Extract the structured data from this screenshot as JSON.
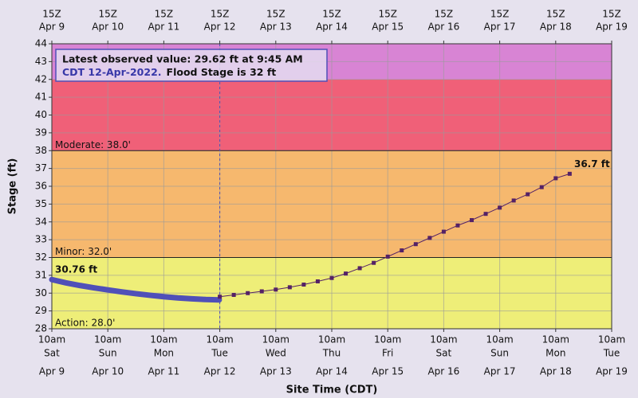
{
  "chart_data": {
    "type": "hydrograph",
    "y_label": "Stage (ft)",
    "x_label": "Site Time (CDT)",
    "ylim": [
      28,
      44
    ],
    "yticks": [
      28,
      29,
      30,
      31,
      32,
      33,
      34,
      35,
      36,
      37,
      38,
      39,
      40,
      41,
      42,
      43,
      44
    ],
    "xlim": [
      "2022-04-09T10:00",
      "2022-04-19T10:00"
    ],
    "xticks": [
      {
        "value": "2022-04-09T10:00",
        "label": "10am",
        "weekday": "Sat",
        "date": "Apr 9",
        "utc": "15Z"
      },
      {
        "value": "2022-04-10T10:00",
        "label": "10am",
        "weekday": "Sun",
        "date": "Apr 10",
        "utc": "15Z"
      },
      {
        "value": "2022-04-11T10:00",
        "label": "10am",
        "weekday": "Mon",
        "date": "Apr 11",
        "utc": "15Z"
      },
      {
        "value": "2022-04-12T10:00",
        "label": "10am",
        "weekday": "Tue",
        "date": "Apr 12",
        "utc": "15Z"
      },
      {
        "value": "2022-04-13T10:00",
        "label": "10am",
        "weekday": "Wed",
        "date": "Apr 13",
        "utc": "15Z"
      },
      {
        "value": "2022-04-14T10:00",
        "label": "10am",
        "weekday": "Thu",
        "date": "Apr 14",
        "utc": "15Z"
      },
      {
        "value": "2022-04-15T10:00",
        "label": "10am",
        "weekday": "Fri",
        "date": "Apr 15",
        "utc": "15Z"
      },
      {
        "value": "2022-04-16T10:00",
        "label": "10am",
        "weekday": "Sat",
        "date": "Apr 16",
        "utc": "15Z"
      },
      {
        "value": "2022-04-17T10:00",
        "label": "10am",
        "weekday": "Sun",
        "date": "Apr 17",
        "utc": "15Z"
      },
      {
        "value": "2022-04-18T10:00",
        "label": "10am",
        "weekday": "Mon",
        "date": "Apr 18",
        "utc": "15Z"
      },
      {
        "value": "2022-04-19T10:00",
        "label": "10am",
        "weekday": "Tue",
        "date": "Apr 19",
        "utc": "15Z"
      }
    ],
    "grid": true,
    "thresholds": [
      {
        "value": 28,
        "label": "Action: 28.0'",
        "color": "#eeee78"
      },
      {
        "value": 32,
        "label": "Minor: 32.0'",
        "color": "#f6b86e"
      },
      {
        "value": 38,
        "label": "Moderate: 38.0'",
        "color": "#f06078"
      },
      {
        "value": 42,
        "color": "#d884d4"
      }
    ],
    "current_time": "2022-04-12T10:00",
    "series": [
      {
        "name": "Observed",
        "color": "#5050b8",
        "x": [
          "2022-04-09T10:00",
          "2022-04-09T16:00",
          "2022-04-09T22:00",
          "2022-04-10T04:00",
          "2022-04-10T10:00",
          "2022-04-10T16:00",
          "2022-04-10T22:00",
          "2022-04-11T04:00",
          "2022-04-11T10:00",
          "2022-04-11T16:00",
          "2022-04-11T22:00",
          "2022-04-12T04:00",
          "2022-04-12T09:45"
        ],
        "values": [
          30.76,
          30.58,
          30.43,
          30.3,
          30.18,
          30.07,
          29.97,
          29.88,
          29.8,
          29.73,
          29.68,
          29.64,
          29.62
        ],
        "label": "30.76 ft"
      },
      {
        "name": "Forecast",
        "color": "#552266",
        "x": [
          "2022-04-12T10:00",
          "2022-04-12T16:00",
          "2022-04-12T22:00",
          "2022-04-13T04:00",
          "2022-04-13T10:00",
          "2022-04-13T16:00",
          "2022-04-13T22:00",
          "2022-04-14T04:00",
          "2022-04-14T10:00",
          "2022-04-14T16:00",
          "2022-04-14T22:00",
          "2022-04-15T04:00",
          "2022-04-15T10:00",
          "2022-04-15T16:00",
          "2022-04-15T22:00",
          "2022-04-16T04:00",
          "2022-04-16T10:00",
          "2022-04-16T16:00",
          "2022-04-16T22:00",
          "2022-04-17T04:00",
          "2022-04-17T10:00",
          "2022-04-17T16:00",
          "2022-04-17T22:00",
          "2022-04-18T04:00",
          "2022-04-18T10:00",
          "2022-04-18T16:00"
        ],
        "values": [
          29.8,
          29.9,
          30.0,
          30.1,
          30.2,
          30.33,
          30.48,
          30.66,
          30.85,
          31.1,
          31.4,
          31.7,
          32.05,
          32.4,
          32.75,
          33.1,
          33.45,
          33.8,
          34.1,
          34.45,
          34.8,
          35.2,
          35.55,
          35.95,
          36.45,
          36.7
        ],
        "label": "36.7 ft"
      }
    ],
    "annotation": {
      "observed": "Latest observed value: 29.62 ft at 9:45 AM",
      "observed_2": "CDT 12-Apr-2022.",
      "flood": "Flood Stage is 32 ft"
    }
  }
}
